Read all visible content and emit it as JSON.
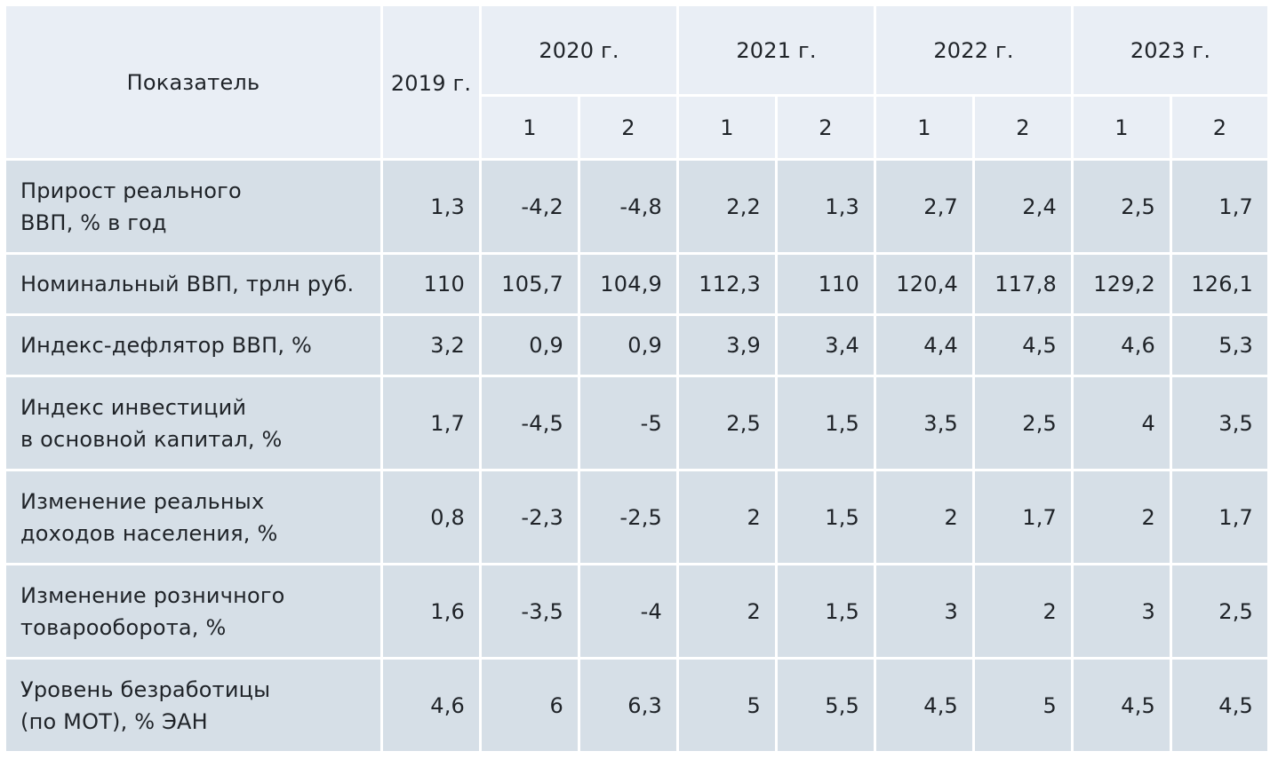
{
  "table": {
    "header": {
      "indicator": "Показатель",
      "year2019": "2019 г.",
      "years": [
        "2020 г.",
        "2021 г.",
        "2022 г.",
        "2023 г."
      ],
      "variants": [
        "1",
        "2"
      ]
    },
    "rows": [
      {
        "label_lines": [
          "Прирост реального",
          "ВВП,  % в год"
        ],
        "values": [
          "1,3",
          "-4,2",
          "-4,8",
          "2,2",
          "1,3",
          "2,7",
          "2,4",
          "2,5",
          "1,7"
        ]
      },
      {
        "label_lines": [
          "Номинальный ВВП, трлн руб."
        ],
        "values": [
          "110",
          "105,7",
          "104,9",
          "112,3",
          "110",
          "120,4",
          "117,8",
          "129,2",
          "126,1"
        ]
      },
      {
        "label_lines": [
          "Индекс-дефлятор ВВП,  %"
        ],
        "values": [
          "3,2",
          "0,9",
          "0,9",
          "3,9",
          "3,4",
          "4,4",
          "4,5",
          "4,6",
          "5,3"
        ]
      },
      {
        "label_lines": [
          "Индекс инвестиций",
          "в основной капитал,  %"
        ],
        "values": [
          "1,7",
          "-4,5",
          "-5",
          "2,5",
          "1,5",
          "3,5",
          "2,5",
          "4",
          "3,5"
        ]
      },
      {
        "label_lines": [
          "Изменение реальных",
          "доходов населения,  %"
        ],
        "values": [
          "0,8",
          "-2,3",
          "-2,5",
          "2",
          "1,5",
          "2",
          "1,7",
          "2",
          "1,7"
        ]
      },
      {
        "label_lines": [
          "Изменение розничного",
          "товарооборота,  %"
        ],
        "values": [
          "1,6",
          "-3,5",
          "-4",
          "2",
          "1,5",
          "3",
          "2",
          "3",
          "2,5"
        ]
      },
      {
        "label_lines": [
          "Уровень безработицы",
          "(по МОТ),  % ЭАН"
        ],
        "values": [
          "4,6",
          "6",
          "6,3",
          "5",
          "5,5",
          "4,5",
          "5",
          "4,5",
          "4,5"
        ]
      }
    ]
  }
}
